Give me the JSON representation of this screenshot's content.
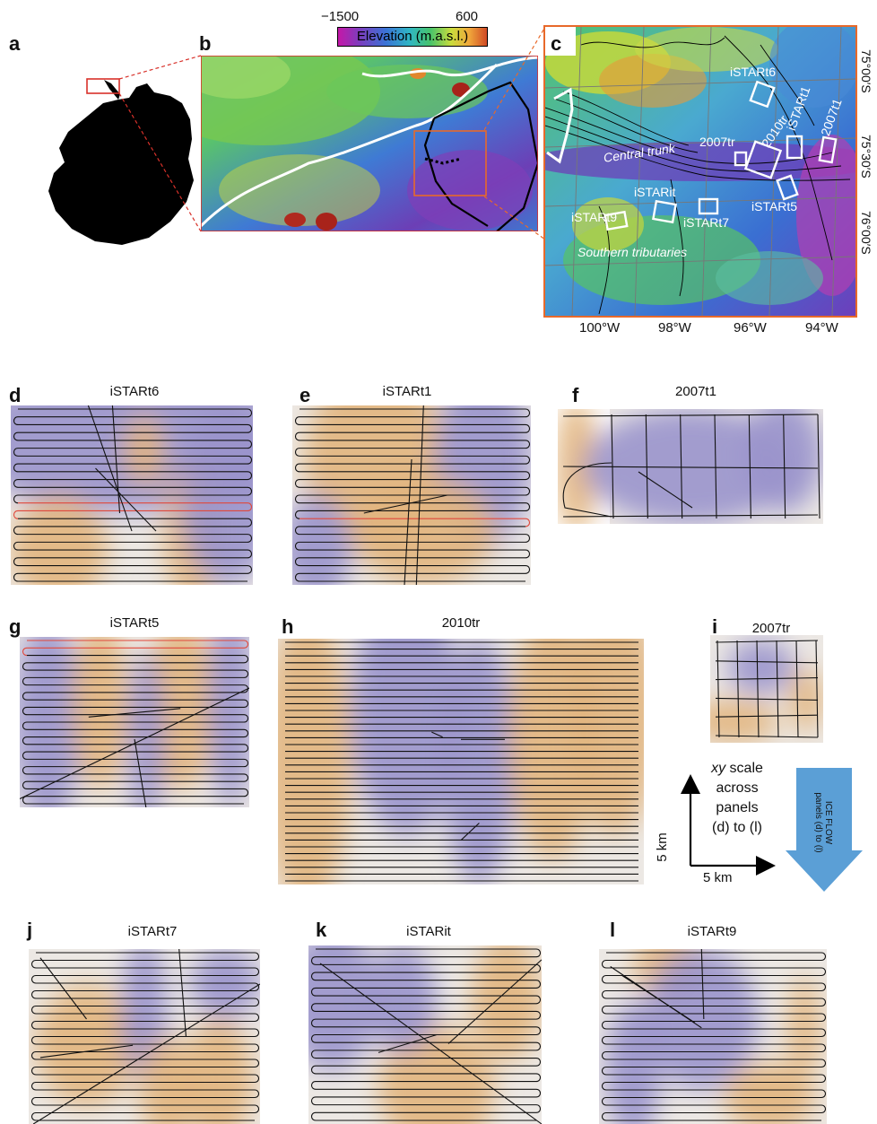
{
  "panels": {
    "a": {
      "label": "a"
    },
    "b": {
      "label": "b"
    },
    "c": {
      "label": "c"
    },
    "d": {
      "label": "d",
      "title": "iSTARt6"
    },
    "e": {
      "label": "e",
      "title": "iSTARt1"
    },
    "f": {
      "label": "f",
      "title": "2007t1"
    },
    "g": {
      "label": "g",
      "title": "iSTARt5"
    },
    "h": {
      "label": "h",
      "title": "2010tr"
    },
    "i": {
      "label": "i",
      "title": "2007tr"
    },
    "j": {
      "label": "j",
      "title": "iSTARt7"
    },
    "k": {
      "label": "k",
      "title": "iSTARit"
    },
    "l": {
      "label": "l",
      "title": "iSTARt9"
    }
  },
  "colorbar": {
    "min": "−1500",
    "max": "600",
    "label": "Elevation (m.a.s.l.)"
  },
  "map_c": {
    "site_labels": {
      "istart6": "iSTARt6",
      "istart1": "iSTARt1",
      "t2007t1": "2007t1",
      "t2010tr": "2010tr",
      "t2007tr": "2007tr",
      "istarit": "iSTARit",
      "istart9": "iSTARt9",
      "istart7": "iSTARt7",
      "istart5": "iSTARt5"
    },
    "region_labels": {
      "central_trunk": "Central trunk",
      "southern_tributaries": "Southern tributaries"
    },
    "lat_labels": [
      "75°00′S",
      "75°30′S",
      "76°00′S"
    ],
    "lon_labels": [
      "100°W",
      "98°W",
      "96°W",
      "94°W"
    ]
  },
  "scale": {
    "text_line1": "xy",
    "text_line1b": " scale",
    "text_line2": "across",
    "text_line3": "panels",
    "text_line4": "(d) to (l)",
    "y_label": "5 km",
    "x_label": "5 km"
  },
  "ice_flow": {
    "line1": "ICE FLOW",
    "line2": "panels (d) to (l)"
  },
  "colors": {
    "cold": "#9a94cc",
    "warm": "#e2b57e",
    "neutral": "#ece8e4",
    "track_red": "#e0473a",
    "frame_orange": "#e8692a",
    "flow_arrow": "#5b9fd6"
  }
}
